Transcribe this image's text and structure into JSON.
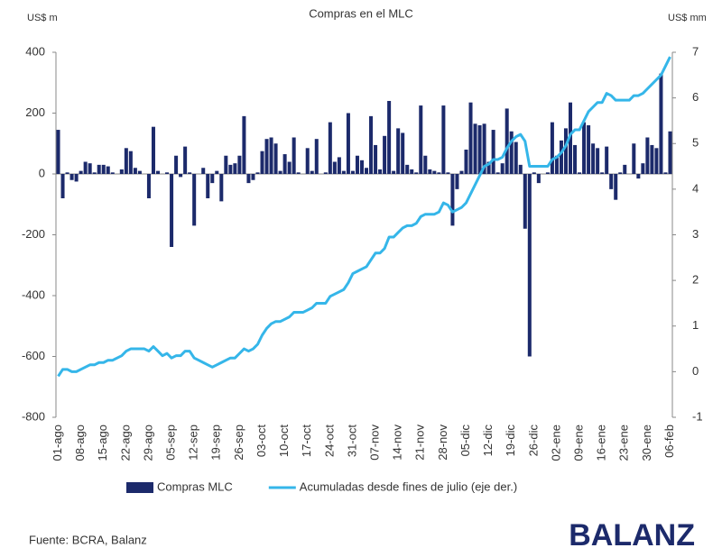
{
  "chart_data": {
    "type": "bar-line",
    "title": "Compras en el MLC",
    "y_label": "US$ m",
    "y2_label": "US$ mm",
    "categories": [
      "01-ago",
      null,
      null,
      null,
      null,
      "08-ago",
      null,
      null,
      null,
      null,
      "15-ago",
      null,
      null,
      null,
      null,
      "22-ago",
      null,
      null,
      null,
      null,
      "29-ago",
      null,
      null,
      null,
      null,
      "05-sep",
      null,
      null,
      null,
      null,
      "12-sep",
      null,
      null,
      null,
      null,
      "19-sep",
      null,
      null,
      null,
      null,
      "26-sep",
      null,
      null,
      null,
      null,
      "03-oct",
      null,
      null,
      null,
      null,
      "10-oct",
      null,
      null,
      null,
      null,
      "17-oct",
      null,
      null,
      null,
      null,
      "24-oct",
      null,
      null,
      null,
      null,
      "31-oct",
      null,
      null,
      null,
      null,
      "07-nov",
      null,
      null,
      null,
      null,
      "14-nov",
      null,
      null,
      null,
      null,
      "21-nov",
      null,
      null,
      null,
      null,
      "28-nov",
      null,
      null,
      null,
      null,
      "05-dic",
      null,
      null,
      null,
      null,
      "12-dic",
      null,
      null,
      null,
      null,
      "19-dic",
      null,
      null,
      null,
      null,
      "26-dic",
      null,
      null,
      null,
      null,
      "02-ene",
      null,
      null,
      null,
      null,
      "09-ene",
      null,
      null,
      null,
      null,
      "16-ene",
      null,
      null,
      null,
      null,
      "23-ene",
      null,
      null,
      null,
      null,
      "30-ene",
      null,
      null,
      null,
      null,
      "06-feb"
    ],
    "series": [
      {
        "name": "Compras MLC",
        "type": "bar",
        "color": "#1c2a6b",
        "values": [
          145,
          -80,
          5,
          -20,
          -25,
          10,
          40,
          35,
          5,
          30,
          30,
          25,
          5,
          0,
          15,
          85,
          75,
          20,
          10,
          0,
          -80,
          155,
          10,
          0,
          5,
          -240,
          60,
          -10,
          90,
          5,
          -170,
          0,
          20,
          -80,
          -30,
          10,
          -90,
          60,
          30,
          35,
          60,
          190,
          -30,
          -20,
          5,
          75,
          115,
          120,
          100,
          10,
          65,
          40,
          120,
          5,
          0,
          85,
          10,
          115,
          0,
          5,
          170,
          40,
          55,
          10,
          200,
          10,
          60,
          45,
          20,
          190,
          95,
          15,
          125,
          240,
          10,
          150,
          135,
          30,
          15,
          5,
          225,
          60,
          15,
          10,
          5,
          225,
          5,
          -170,
          -50,
          10,
          80,
          235,
          165,
          160,
          165,
          40,
          145,
          5,
          35,
          215,
          140,
          105,
          30,
          -180,
          -600,
          5,
          -30,
          0,
          5,
          170,
          60,
          110,
          150,
          235,
          95,
          5,
          170,
          160,
          100,
          85,
          5,
          90,
          -50,
          -85,
          5,
          30,
          0,
          100,
          -15,
          35,
          120,
          95,
          85,
          330,
          5,
          140
        ]
      },
      {
        "name": "Acumuladas desde fines de julio (eje der.)",
        "type": "line",
        "axis": "y2",
        "color": "#35b6e9",
        "values": [
          -0.1,
          0.05,
          0.05,
          0,
          0,
          0.05,
          0.1,
          0.15,
          0.15,
          0.2,
          0.2,
          0.25,
          0.25,
          0.3,
          0.35,
          0.45,
          0.5,
          0.5,
          0.5,
          0.5,
          0.45,
          0.55,
          0.45,
          0.35,
          0.4,
          0.3,
          0.35,
          0.35,
          0.45,
          0.45,
          0.3,
          0.25,
          0.2,
          0.15,
          0.1,
          0.15,
          0.2,
          0.25,
          0.3,
          0.3,
          0.4,
          0.5,
          0.45,
          0.5,
          0.6,
          0.8,
          0.95,
          1.05,
          1.1,
          1.1,
          1.15,
          1.2,
          1.3,
          1.3,
          1.3,
          1.35,
          1.4,
          1.5,
          1.5,
          1.5,
          1.65,
          1.7,
          1.75,
          1.8,
          1.95,
          2.15,
          2.2,
          2.25,
          2.3,
          2.45,
          2.6,
          2.6,
          2.7,
          2.95,
          2.95,
          3.05,
          3.15,
          3.2,
          3.2,
          3.25,
          3.4,
          3.45,
          3.45,
          3.45,
          3.5,
          3.7,
          3.65,
          3.5,
          3.55,
          3.6,
          3.7,
          3.9,
          4.1,
          4.3,
          4.5,
          4.55,
          4.65,
          4.65,
          4.7,
          4.9,
          5.05,
          5.15,
          5.2,
          5.05,
          4.5,
          4.5,
          4.5,
          4.5,
          4.5,
          4.65,
          4.7,
          4.8,
          4.95,
          5.2,
          5.3,
          5.3,
          5.5,
          5.7,
          5.8,
          5.9,
          5.9,
          6.1,
          6.05,
          5.95,
          5.95,
          5.95,
          5.95,
          6.05,
          6.05,
          6.1,
          6.2,
          6.3,
          6.4,
          6.5,
          6.7,
          6.9
        ]
      }
    ],
    "ylim": [
      -800,
      400
    ],
    "yticks": [
      -800,
      -600,
      -400,
      -200,
      0,
      200,
      400
    ],
    "y2lim": [
      -1,
      7
    ],
    "y2ticks": [
      -1,
      0,
      1,
      2,
      3,
      4,
      5,
      6,
      7
    ],
    "grid": false,
    "legend": "bottom",
    "source": "Fuente: BCRA, Balanz",
    "logo": "BALANZ"
  }
}
